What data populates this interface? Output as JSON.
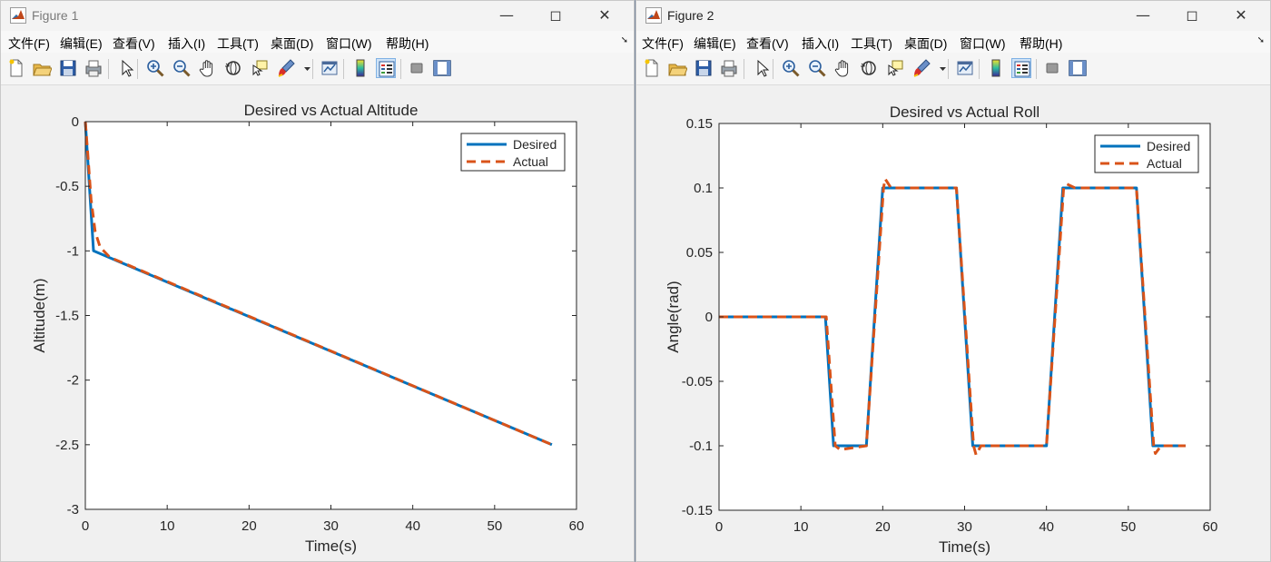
{
  "windows": [
    {
      "title": "Figure 1",
      "active": false,
      "menu": [
        "文件(F)",
        "编辑(E)",
        "查看(V)",
        "插入(I)",
        "工具(T)",
        "桌面(D)",
        "窗口(W)",
        "帮助(H)"
      ]
    },
    {
      "title": "Figure 2",
      "active": true,
      "menu": [
        "文件(F)",
        "编辑(E)",
        "查看(V)",
        "插入(I)",
        "工具(T)",
        "桌面(D)",
        "窗口(W)",
        "帮助(H)"
      ]
    }
  ],
  "toolbar_icons": [
    "new-figure-icon",
    "open-file-icon",
    "save-icon",
    "print-icon",
    "edit-plot-arrow-icon",
    "zoom-in-icon",
    "zoom-out-icon",
    "pan-hand-icon",
    "rotate-3d-icon",
    "data-cursor-icon",
    "brush-icon",
    "link-plot-icon",
    "colorbar-icon",
    "legend-icon",
    "hide-plot-tools-icon",
    "show-plot-tools-icon"
  ],
  "colors": {
    "desired": "#0072BD",
    "actual": "#D95319"
  },
  "chart_data": [
    {
      "type": "line",
      "title": "Desired vs Actual Altitude",
      "xlabel": "Time(s)",
      "ylabel": "Altitude(m)",
      "xlim": [
        0,
        60
      ],
      "ylim": [
        -3,
        0
      ],
      "xticks": [
        0,
        10,
        20,
        30,
        40,
        50,
        60
      ],
      "yticks": [
        0,
        -0.5,
        -1,
        -1.5,
        -2,
        -2.5,
        -3
      ],
      "xtick_labels": [
        "0",
        "10",
        "20",
        "30",
        "40",
        "50",
        "60"
      ],
      "ytick_labels": [
        "0",
        "-0.5",
        "-1",
        "-1.5",
        "-2",
        "-2.5",
        "-3"
      ],
      "legend_position": "top-right",
      "grid": false,
      "series": [
        {
          "name": "Desired",
          "style": "solid",
          "x": [
            0,
            1,
            57
          ],
          "y": [
            0,
            -1,
            -2.5
          ]
        },
        {
          "name": "Actual",
          "style": "dashed",
          "x": [
            0,
            0.3,
            0.7,
            1.2,
            1.8,
            3,
            57
          ],
          "y": [
            0,
            -0.25,
            -0.6,
            -0.85,
            -0.97,
            -1.05,
            -2.5
          ]
        }
      ]
    },
    {
      "type": "line",
      "title": "Desired vs Actual Roll",
      "xlabel": "Time(s)",
      "ylabel": "Angle(rad)",
      "xlim": [
        0,
        60
      ],
      "ylim": [
        -0.15,
        0.15
      ],
      "xticks": [
        0,
        10,
        20,
        30,
        40,
        50,
        60
      ],
      "yticks": [
        0.15,
        0.1,
        0.05,
        0,
        -0.05,
        -0.1,
        -0.15
      ],
      "xtick_labels": [
        "0",
        "10",
        "20",
        "30",
        "40",
        "50",
        "60"
      ],
      "ytick_labels": [
        "0.15",
        "0.1",
        "0.05",
        "0",
        "-0.05",
        "-0.1",
        "-0.15"
      ],
      "legend_position": "top-right",
      "grid": false,
      "series": [
        {
          "name": "Desired",
          "style": "solid",
          "x": [
            0,
            13,
            14,
            18,
            20,
            29,
            31,
            40,
            42,
            51,
            53,
            57
          ],
          "y": [
            0,
            0,
            -0.1,
            -0.1,
            0.1,
            0.1,
            -0.1,
            -0.1,
            0.1,
            0.1,
            -0.1,
            -0.1
          ]
        },
        {
          "name": "Actual",
          "style": "dashed",
          "x": [
            0,
            13.1,
            14.2,
            14.8,
            18,
            20.1,
            20.3,
            21,
            29,
            31.1,
            31.4,
            32,
            40,
            42.1,
            42.5,
            43.5,
            51,
            53.1,
            53.3,
            54,
            57
          ],
          "y": [
            0,
            0,
            -0.1,
            -0.103,
            -0.1,
            0.1,
            0.107,
            0.1,
            0.1,
            -0.1,
            -0.107,
            -0.1,
            -0.1,
            0.1,
            0.103,
            0.1,
            0.1,
            -0.1,
            -0.106,
            -0.1,
            -0.1
          ]
        }
      ]
    }
  ]
}
